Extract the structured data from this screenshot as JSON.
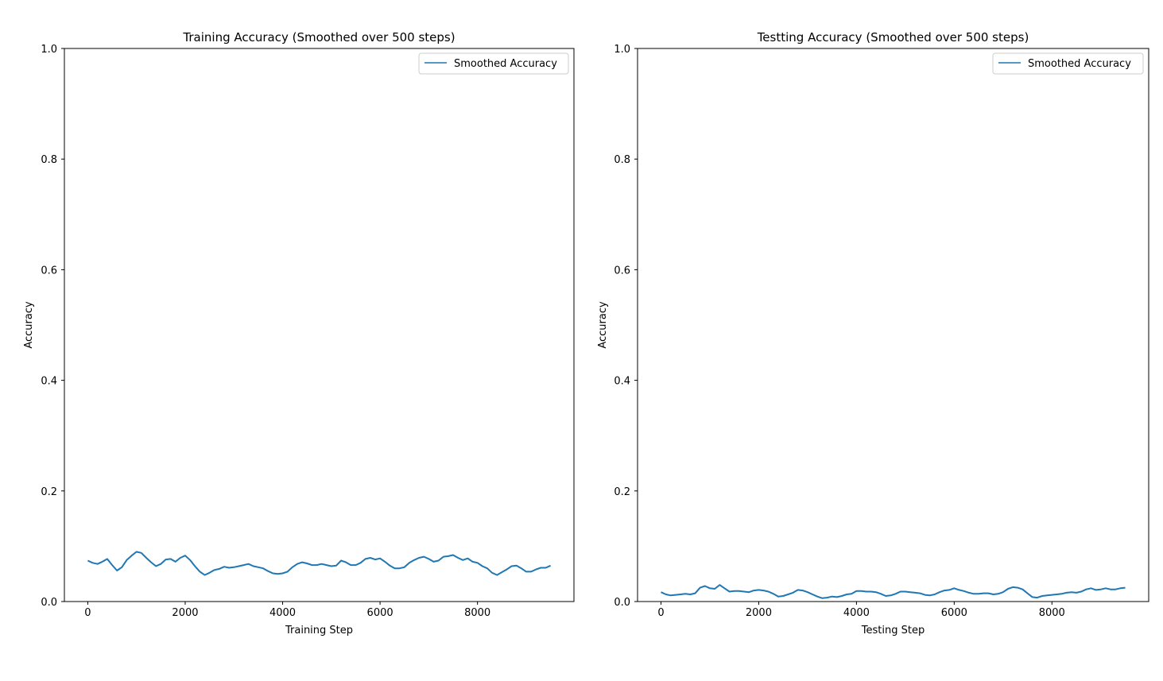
{
  "figure": {
    "line_color": "#1f77b4"
  },
  "chart_data": [
    {
      "type": "line",
      "title": "Training Accuracy (Smoothed over 500 steps)",
      "xlabel": "Training Step",
      "ylabel": "Accuracy",
      "xlim": [
        -480,
        9980
      ],
      "ylim": [
        0.0,
        1.0
      ],
      "xticks": [
        0,
        2000,
        4000,
        6000,
        8000
      ],
      "xtick_labels": [
        "0",
        "2000",
        "4000",
        "6000",
        "8000"
      ],
      "yticks": [
        0.0,
        0.2,
        0.4,
        0.6,
        0.8,
        1.0
      ],
      "ytick_labels": [
        "0.0",
        "0.2",
        "0.4",
        "0.6",
        "0.8",
        "1.0"
      ],
      "grid": false,
      "legend": {
        "placement": "upper right",
        "entries": [
          "Smoothed Accuracy"
        ]
      },
      "series": [
        {
          "name": "Smoothed Accuracy",
          "x": [
            0,
            100,
            200,
            300,
            400,
            500,
            600,
            700,
            800,
            900,
            1000,
            1100,
            1200,
            1300,
            1400,
            1500,
            1600,
            1700,
            1800,
            1900,
            2000,
            2100,
            2200,
            2300,
            2400,
            2500,
            2600,
            2700,
            2800,
            2900,
            3000,
            3100,
            3200,
            3300,
            3400,
            3500,
            3600,
            3700,
            3800,
            3900,
            4000,
            4100,
            4200,
            4300,
            4400,
            4500,
            4600,
            4700,
            4800,
            4900,
            5000,
            5100,
            5200,
            5300,
            5400,
            5500,
            5600,
            5700,
            5800,
            5900,
            6000,
            6100,
            6200,
            6300,
            6400,
            6500,
            6600,
            6700,
            6800,
            6900,
            7000,
            7100,
            7200,
            7300,
            7400,
            7500,
            7600,
            7700,
            7800,
            7900,
            8000,
            8100,
            8200,
            8300,
            8400,
            8500,
            8600,
            8700,
            8800,
            8900,
            9000,
            9100,
            9200,
            9300,
            9400,
            9500
          ],
          "y": [
            0.074,
            0.07,
            0.068,
            0.072,
            0.077,
            0.066,
            0.056,
            0.062,
            0.075,
            0.083,
            0.09,
            0.088,
            0.079,
            0.071,
            0.064,
            0.068,
            0.076,
            0.077,
            0.072,
            0.079,
            0.083,
            0.075,
            0.064,
            0.054,
            0.048,
            0.052,
            0.057,
            0.059,
            0.063,
            0.061,
            0.062,
            0.064,
            0.066,
            0.068,
            0.064,
            0.062,
            0.06,
            0.055,
            0.051,
            0.05,
            0.051,
            0.054,
            0.062,
            0.068,
            0.071,
            0.069,
            0.066,
            0.066,
            0.068,
            0.066,
            0.064,
            0.065,
            0.074,
            0.071,
            0.066,
            0.066,
            0.07,
            0.077,
            0.079,
            0.076,
            0.078,
            0.072,
            0.065,
            0.06,
            0.06,
            0.062,
            0.07,
            0.075,
            0.079,
            0.081,
            0.077,
            0.072,
            0.074,
            0.081,
            0.082,
            0.084,
            0.079,
            0.075,
            0.078,
            0.072,
            0.07,
            0.064,
            0.06,
            0.052,
            0.048,
            0.053,
            0.058,
            0.064,
            0.065,
            0.06,
            0.054,
            0.054,
            0.058,
            0.061,
            0.061,
            0.065
          ]
        }
      ]
    },
    {
      "type": "line",
      "title": "Testting Accuracy (Smoothed over 500 steps)",
      "xlabel": "Testing Step",
      "ylabel": "Accuracy",
      "xlim": [
        -480,
        9980
      ],
      "ylim": [
        0.0,
        1.0
      ],
      "xticks": [
        0,
        2000,
        4000,
        6000,
        8000
      ],
      "xtick_labels": [
        "0",
        "2000",
        "4000",
        "6000",
        "8000"
      ],
      "yticks": [
        0.0,
        0.2,
        0.4,
        0.6,
        0.8,
        1.0
      ],
      "ytick_labels": [
        "0.0",
        "0.2",
        "0.4",
        "0.6",
        "0.8",
        "1.0"
      ],
      "grid": false,
      "legend": {
        "placement": "upper right",
        "entries": [
          "Smoothed Accuracy"
        ]
      },
      "series": [
        {
          "name": "Smoothed Accuracy",
          "x": [
            0,
            100,
            200,
            300,
            400,
            500,
            600,
            700,
            800,
            900,
            1000,
            1100,
            1200,
            1300,
            1400,
            1500,
            1600,
            1700,
            1800,
            1900,
            2000,
            2100,
            2200,
            2300,
            2400,
            2500,
            2600,
            2700,
            2800,
            2900,
            3000,
            3100,
            3200,
            3300,
            3400,
            3500,
            3600,
            3700,
            3800,
            3900,
            4000,
            4100,
            4200,
            4300,
            4400,
            4500,
            4600,
            4700,
            4800,
            4900,
            5000,
            5100,
            5200,
            5300,
            5400,
            5500,
            5600,
            5700,
            5800,
            5900,
            6000,
            6100,
            6200,
            6300,
            6400,
            6500,
            6600,
            6700,
            6800,
            6900,
            7000,
            7100,
            7200,
            7300,
            7400,
            7500,
            7600,
            7700,
            7800,
            7900,
            8000,
            8100,
            8200,
            8300,
            8400,
            8500,
            8600,
            8700,
            8800,
            8900,
            9000,
            9100,
            9200,
            9300,
            9400,
            9500
          ],
          "y": [
            0.017,
            0.013,
            0.011,
            0.012,
            0.013,
            0.014,
            0.013,
            0.015,
            0.025,
            0.028,
            0.024,
            0.023,
            0.03,
            0.024,
            0.018,
            0.019,
            0.019,
            0.018,
            0.017,
            0.02,
            0.021,
            0.02,
            0.018,
            0.014,
            0.009,
            0.01,
            0.013,
            0.016,
            0.021,
            0.02,
            0.017,
            0.013,
            0.009,
            0.006,
            0.007,
            0.009,
            0.008,
            0.01,
            0.013,
            0.014,
            0.019,
            0.019,
            0.018,
            0.018,
            0.017,
            0.014,
            0.01,
            0.011,
            0.014,
            0.018,
            0.018,
            0.017,
            0.016,
            0.015,
            0.012,
            0.011,
            0.013,
            0.017,
            0.02,
            0.021,
            0.024,
            0.021,
            0.019,
            0.016,
            0.014,
            0.014,
            0.015,
            0.015,
            0.013,
            0.014,
            0.017,
            0.023,
            0.026,
            0.025,
            0.022,
            0.015,
            0.008,
            0.007,
            0.01,
            0.011,
            0.012,
            0.013,
            0.014,
            0.016,
            0.017,
            0.016,
            0.018,
            0.022,
            0.024,
            0.021,
            0.022,
            0.024,
            0.022,
            0.022,
            0.024,
            0.025
          ]
        }
      ]
    }
  ]
}
